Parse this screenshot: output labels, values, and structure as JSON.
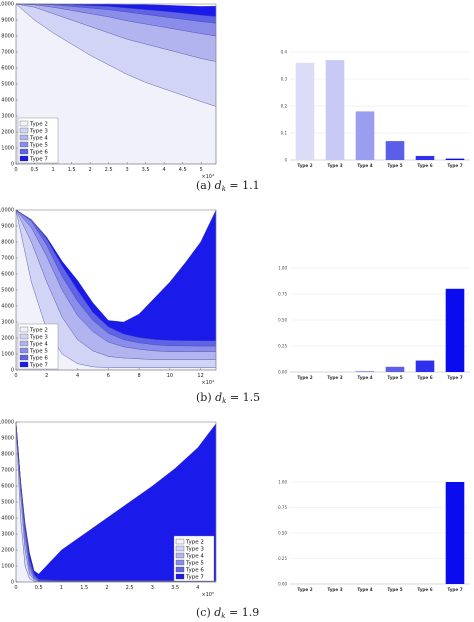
{
  "chart_data": [
    {
      "panel": "(a)",
      "caption_prefix": "(a)",
      "caption_math": "d",
      "caption_sub": "k",
      "caption_rest": " = 1.1",
      "area": {
        "type": "area",
        "stacked": true,
        "x": [
          0,
          0.5,
          1,
          1.5,
          2,
          2.5,
          3,
          3.5,
          4,
          4.5,
          5,
          5.4
        ],
        "xlim": [
          0,
          5.4
        ],
        "x_ticks": [
          "0",
          "0.5",
          "1",
          "1.5",
          "2",
          "2.5",
          "3",
          "3.5",
          "4",
          "4.5",
          "5"
        ],
        "x_multiplier": "×10⁴",
        "ylim": [
          0,
          10000
        ],
        "y_ticks": [
          "0",
          "1000",
          "2000",
          "3000",
          "4000",
          "5000",
          "6000",
          "7000",
          "8000",
          "9000",
          "10000"
        ],
        "series": [
          {
            "name": "Type 2",
            "values": [
              10000,
              9000,
              8200,
              7500,
              6800,
              6200,
              5600,
              5100,
              4700,
              4300,
              3900,
              3600
            ]
          },
          {
            "name": "Type 3",
            "values": [
              0,
              800,
              1200,
              1500,
              1800,
              2000,
              2200,
              2400,
              2500,
              2600,
              2700,
              2800
            ]
          },
          {
            "name": "Type 4",
            "values": [
              0,
              150,
              400,
              600,
              800,
              1000,
              1150,
              1250,
              1350,
              1450,
              1550,
              1600
            ]
          },
          {
            "name": "Type 5",
            "values": [
              0,
              40,
              150,
              250,
              350,
              450,
              550,
              600,
              650,
              700,
              750,
              800
            ]
          },
          {
            "name": "Type 6",
            "values": [
              0,
              10,
              40,
              100,
              150,
              200,
              250,
              300,
              350,
              380,
              400,
              420
            ]
          },
          {
            "name": "Type 7",
            "values": [
              0,
              0,
              10,
              45,
              90,
              150,
              220,
              320,
              380,
              460,
              550,
              650
            ]
          }
        ]
      },
      "bar": {
        "type": "bar",
        "categories": [
          "Type 2",
          "Type 3",
          "Type 4",
          "Type 5",
          "Type 6",
          "Type 7"
        ],
        "values": [
          0.36,
          0.37,
          0.18,
          0.07,
          0.015,
          0.005
        ],
        "ylim": [
          0,
          0.4
        ],
        "y_ticks": [
          "0",
          "0.1",
          "0.2",
          "0.3",
          "0.4"
        ]
      }
    },
    {
      "panel": "(b)",
      "caption_prefix": "(b)",
      "caption_math": "d",
      "caption_sub": "k",
      "caption_rest": " = 1.5",
      "area": {
        "type": "area",
        "stacked": true,
        "x": [
          0,
          1,
          2,
          3,
          4,
          5,
          6,
          7,
          8,
          9,
          10,
          11,
          12,
          13
        ],
        "xlim": [
          0,
          13
        ],
        "x_ticks": [
          "0",
          "2",
          "4",
          "6",
          "8",
          "10",
          "12"
        ],
        "x_multiplier": "×10⁴",
        "ylim": [
          0,
          10000
        ],
        "y_ticks": [
          "0",
          "1000",
          "2000",
          "3000",
          "4000",
          "5000",
          "6000",
          "7000",
          "8000",
          "9000",
          "10000"
        ],
        "series": [
          {
            "name": "Type 2",
            "values": [
              10000,
              5500,
              2500,
              1000,
              400,
              200,
              150,
              150,
              150,
              150,
              150,
              150,
              150,
              150
            ]
          },
          {
            "name": "Type 3",
            "values": [
              0,
              2500,
              3000,
              2300,
              1500,
              1000,
              700,
              600,
              550,
              500,
              500,
              500,
              500,
              500
            ]
          },
          {
            "name": "Type 4",
            "values": [
              0,
              900,
              1600,
              1700,
              1500,
              1200,
              900,
              700,
              600,
              550,
              500,
              500,
              500,
              500
            ]
          },
          {
            "name": "Type 5",
            "values": [
              0,
              400,
              700,
              850,
              900,
              700,
              550,
              450,
              400,
              380,
              370,
              360,
              350,
              350
            ]
          },
          {
            "name": "Type 6",
            "values": [
              0,
              100,
              400,
              650,
              700,
              500,
              400,
              350,
              330,
              330,
              330,
              330,
              330,
              330
            ]
          },
          {
            "name": "Type 7",
            "values": [
              0,
              0,
              100,
              300,
              600,
              600,
              400,
              750,
              1470,
              2590,
              3650,
              4860,
              6170,
              8170
            ]
          }
        ]
      },
      "bar": {
        "type": "bar",
        "categories": [
          "Type 2",
          "Type 3",
          "Type 4",
          "Type 5",
          "Type 6",
          "Type 7"
        ],
        "values": [
          0.0,
          0.0,
          0.01,
          0.05,
          0.11,
          0.8
        ],
        "ylim": [
          0,
          1.0
        ],
        "y_ticks": [
          "0.00",
          "0.25",
          "0.50",
          "0.75",
          "1.00"
        ]
      }
    },
    {
      "panel": "(c)",
      "caption_prefix": "(c)",
      "caption_math": "d",
      "caption_sub": "k",
      "caption_rest": " = 1.9",
      "area": {
        "type": "area",
        "stacked": true,
        "x": [
          0,
          0.1,
          0.2,
          0.3,
          0.4,
          0.5,
          1,
          1.5,
          2,
          2.5,
          3,
          3.5,
          4,
          4.4
        ],
        "xlim": [
          0,
          4.4
        ],
        "x_ticks": [
          "0",
          "0.5",
          "1",
          "1.5",
          "2",
          "2.5",
          "3",
          "3.5",
          "4"
        ],
        "x_multiplier": "×10⁵",
        "ylim": [
          0,
          10000
        ],
        "y_ticks": [
          "0",
          "1000",
          "2000",
          "3000",
          "4000",
          "5000",
          "6000",
          "7000",
          "8000",
          "9000",
          "10000"
        ],
        "series": [
          {
            "name": "Type 2",
            "values": [
              10000,
              4000,
              1000,
              200,
              50,
              20,
              20,
              20,
              20,
              20,
              20,
              20,
              20,
              20
            ]
          },
          {
            "name": "Type 3",
            "values": [
              0,
              1500,
              1000,
              300,
              80,
              30,
              20,
              20,
              20,
              20,
              20,
              20,
              20,
              20
            ]
          },
          {
            "name": "Type 4",
            "values": [
              0,
              600,
              700,
              300,
              80,
              30,
              20,
              20,
              20,
              20,
              20,
              20,
              20,
              20
            ]
          },
          {
            "name": "Type 5",
            "values": [
              0,
              200,
              500,
              300,
              100,
              30,
              20,
              20,
              20,
              20,
              20,
              20,
              20,
              20
            ]
          },
          {
            "name": "Type 6",
            "values": [
              0,
              50,
              300,
              300,
              150,
              50,
              20,
              20,
              20,
              20,
              20,
              20,
              20,
              20
            ]
          },
          {
            "name": "Type 7",
            "values": [
              0,
              0,
              200,
              400,
              240,
              340,
              1900,
              2900,
              3900,
              4900,
              5900,
              7000,
              8300,
              9800
            ]
          }
        ]
      },
      "bar": {
        "type": "bar",
        "categories": [
          "Type 2",
          "Type 3",
          "Type 4",
          "Type 5",
          "Type 6",
          "Type 7"
        ],
        "values": [
          0,
          0,
          0,
          0,
          0,
          1.0
        ],
        "ylim": [
          0,
          1.0
        ],
        "y_ticks": [
          "0.00",
          "0.25",
          "0.50",
          "0.75",
          "1.00"
        ]
      }
    }
  ],
  "colors": {
    "type_area": [
      "#f1f1fb",
      "#d2d4f5",
      "#b2b4ef",
      "#8a8de9",
      "#5f63e7",
      "#1a1aeb"
    ],
    "type_bar": [
      "#dcdcf7",
      "#c8c9f4",
      "#9b9ef0",
      "#5b5ee8",
      "#2f30ee",
      "#0b0bf0"
    ],
    "axis": "#888888",
    "grid": "#e6e6e6"
  }
}
